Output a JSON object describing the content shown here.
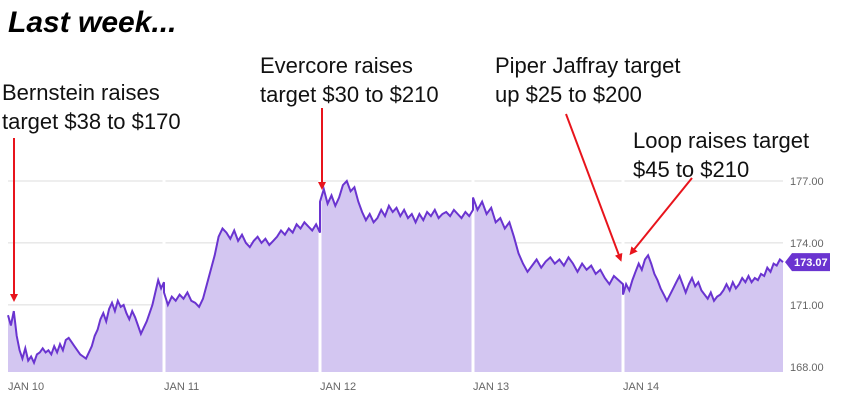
{
  "title": "Last week...",
  "colors": {
    "line": "#6a34d0",
    "fill": "#d3c6f1",
    "arrow": "#e8141c",
    "badge": "#6a34d0",
    "grid": "#dcdcdc"
  },
  "annotations": [
    {
      "label": "Bernstein raises\ntarget $38 to $170",
      "points_to": "JAN 10"
    },
    {
      "label": "Evercore raises\ntarget $30 to $210",
      "points_to": "JAN 12"
    },
    {
      "label": "Piper Jaffray target\nup $25 to $200",
      "points_to": "JAN 14"
    },
    {
      "label": "Loop raises target\n$45 to $210",
      "points_to": "JAN 14"
    }
  ],
  "chart_data": {
    "type": "area",
    "x_ticks": [
      "JAN 10",
      "JAN 11",
      "JAN 12",
      "JAN 13",
      "JAN 14"
    ],
    "y_ticks": [
      "168.00",
      "171.00",
      "174.00",
      "177.00"
    ],
    "ylim": [
      167.75,
      178.5
    ],
    "current_value": "173.07",
    "sessions": [
      {
        "day": "JAN 10",
        "values": [
          170.5,
          170.0,
          170.7,
          169.5,
          168.8,
          168.4,
          168.9,
          168.3,
          168.5,
          168.2,
          168.6,
          168.7,
          168.9,
          168.7,
          168.8,
          168.6,
          169.0,
          168.7,
          169.1,
          168.8,
          169.3,
          169.4,
          169.2,
          169.0,
          168.8,
          168.6,
          168.5,
          168.4,
          168.7,
          169.0,
          169.5,
          169.8,
          170.3,
          170.6,
          170.2,
          170.8,
          171.1,
          170.7,
          171.2,
          170.9,
          171.0,
          170.6,
          170.3,
          170.7,
          170.4,
          170.0,
          169.6,
          169.9,
          170.2,
          170.6,
          171.0,
          171.6,
          172.2,
          171.8,
          172.1
        ]
      },
      {
        "day": "JAN 11",
        "values": [
          171.6,
          171.0,
          171.4,
          171.2,
          171.5,
          171.3,
          171.6,
          171.2,
          171.1,
          170.9,
          171.3,
          172.0,
          172.7,
          173.4,
          174.3,
          174.7,
          174.5,
          174.2,
          174.6,
          174.1,
          174.4,
          174.0,
          173.8,
          174.1,
          174.3,
          174.0,
          174.2,
          173.9,
          174.1,
          174.3,
          174.6,
          174.4,
          174.7,
          174.5,
          174.9,
          174.7,
          175.0,
          174.8,
          174.6,
          174.9,
          174.5
        ]
      },
      {
        "day": "JAN 12",
        "values": [
          176.0,
          176.6,
          175.9,
          176.3,
          175.8,
          176.2,
          176.8,
          177.0,
          176.5,
          176.7,
          176.0,
          175.5,
          175.1,
          175.4,
          175.0,
          175.2,
          175.6,
          175.3,
          175.8,
          175.5,
          175.7,
          175.3,
          175.6,
          175.2,
          175.4,
          175.0,
          175.4,
          175.1,
          175.5,
          175.3,
          175.6,
          175.2,
          175.4,
          175.5,
          175.3,
          175.6,
          175.4,
          175.2,
          175.5,
          175.3,
          175.6
        ]
      },
      {
        "day": "JAN 13",
        "values": [
          176.2,
          175.6,
          176.0,
          175.4,
          175.7,
          175.0,
          175.2,
          174.7,
          175.0,
          174.3,
          173.5,
          173.0,
          172.6,
          172.9,
          173.2,
          172.8,
          173.1,
          173.3,
          173.0,
          173.2,
          172.9,
          173.3,
          173.0,
          172.6,
          173.0,
          172.7,
          172.9,
          172.5,
          172.7,
          172.3,
          172.0,
          172.4,
          172.2,
          172.0
        ]
      },
      {
        "day": "JAN 14",
        "values": [
          171.5,
          172.0,
          171.7,
          172.2,
          172.6,
          173.0,
          172.7,
          173.2,
          173.4,
          173.0,
          172.5,
          172.2,
          171.8,
          171.5,
          171.2,
          171.5,
          171.8,
          172.1,
          172.4,
          172.0,
          171.6,
          172.0,
          172.3,
          171.9,
          172.1,
          171.7,
          171.5,
          171.3,
          171.6,
          171.2,
          171.4,
          171.5,
          171.7,
          172.0,
          171.7,
          172.1,
          171.8,
          172.0,
          172.3,
          172.1,
          172.4,
          172.1,
          172.3,
          172.2,
          172.5,
          172.4,
          172.8,
          172.6,
          173.0,
          172.9,
          173.2,
          173.07
        ]
      }
    ]
  }
}
